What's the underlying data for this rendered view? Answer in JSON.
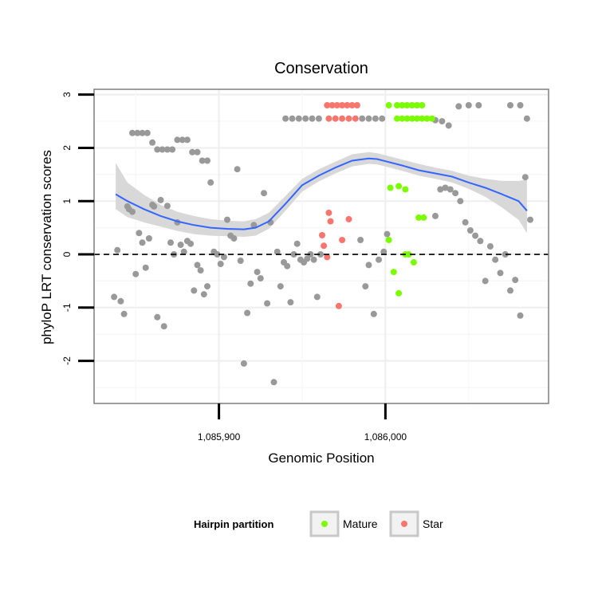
{
  "chart_data": {
    "type": "scatter",
    "title": "Conservation",
    "xlabel": "Genomic Position",
    "ylabel": "phyloP LRT conservation scores",
    "xlim": [
      1085825,
      1086098
    ],
    "ylim": [
      -2.8,
      3.1
    ],
    "x_ticks": [
      {
        "value": 1085900,
        "label": "1,085,900"
      },
      {
        "value": 1086000,
        "label": "1,086,000"
      }
    ],
    "y_ticks": [
      {
        "value": -2,
        "label": "-2"
      },
      {
        "value": -1,
        "label": "-1"
      },
      {
        "value": 0,
        "label": "0"
      },
      {
        "value": 1,
        "label": "1"
      },
      {
        "value": 2,
        "label": "2"
      },
      {
        "value": 3,
        "label": "3"
      }
    ],
    "reference_line": {
      "y": 0,
      "style": "dashed"
    },
    "smooth": {
      "color": "#3366ff",
      "band_color": "#d6d6d6",
      "x": [
        1085838,
        1085845,
        1085855,
        1085865,
        1085875,
        1085885,
        1085895,
        1085905,
        1085915,
        1085922,
        1085930,
        1085940,
        1085950,
        1085960,
        1085970,
        1085980,
        1085990,
        1085995,
        1086000,
        1086010,
        1086020,
        1086030,
        1086040,
        1086050,
        1086060,
        1086070,
        1086080,
        1086085
      ],
      "y": [
        1.13,
        1.0,
        0.85,
        0.72,
        0.62,
        0.55,
        0.5,
        0.48,
        0.47,
        0.5,
        0.62,
        0.95,
        1.3,
        1.48,
        1.63,
        1.76,
        1.8,
        1.79,
        1.75,
        1.67,
        1.58,
        1.52,
        1.46,
        1.35,
        1.25,
        1.13,
        1.0,
        0.82
      ],
      "lower": [
        0.85,
        0.7,
        0.6,
        0.52,
        0.44,
        0.38,
        0.35,
        0.34,
        0.33,
        0.35,
        0.48,
        0.82,
        1.18,
        1.37,
        1.52,
        1.65,
        1.7,
        1.69,
        1.65,
        1.57,
        1.48,
        1.42,
        1.35,
        1.23,
        1.08,
        0.88,
        0.65,
        0.4
      ],
      "upper": [
        1.72,
        1.35,
        1.12,
        0.93,
        0.8,
        0.72,
        0.66,
        0.63,
        0.62,
        0.66,
        0.78,
        1.1,
        1.42,
        1.6,
        1.74,
        1.88,
        1.92,
        1.9,
        1.86,
        1.78,
        1.7,
        1.63,
        1.57,
        1.48,
        1.42,
        1.38,
        1.38,
        1.4
      ]
    },
    "series": [
      {
        "name": "Mature",
        "color": "#7cfc00",
        "x": [
          1086002,
          1086007,
          1086010,
          1086013,
          1086016,
          1086019,
          1086022,
          1086007,
          1086010,
          1086013,
          1086016,
          1086019,
          1086022,
          1086025,
          1086028,
          1086003,
          1086008,
          1086012,
          1086002,
          1086005,
          1086008,
          1086012,
          1086014,
          1086017,
          1086020,
          1086023
        ],
        "y": [
          2.8,
          2.8,
          2.8,
          2.8,
          2.8,
          2.8,
          2.8,
          2.55,
          2.55,
          2.55,
          2.55,
          2.55,
          2.55,
          2.55,
          2.55,
          1.25,
          1.28,
          1.22,
          0.27,
          -0.33,
          -0.73,
          0.0,
          0.0,
          -0.15,
          0.69,
          0.69
        ]
      },
      {
        "name": "Star",
        "color": "#f8766d",
        "x": [
          1085965,
          1085968,
          1085971,
          1085974,
          1085977,
          1085980,
          1085983,
          1085966,
          1085970,
          1085974,
          1085978,
          1085982,
          1085962,
          1085963,
          1085965,
          1085966,
          1085967,
          1085972,
          1085974,
          1085978
        ],
        "y": [
          2.8,
          2.8,
          2.8,
          2.8,
          2.8,
          2.8,
          2.8,
          2.55,
          2.55,
          2.55,
          2.55,
          2.55,
          0.36,
          0.16,
          -0.05,
          0.78,
          0.62,
          -0.97,
          0.27,
          0.66
        ]
      },
      {
        "name": "",
        "color": "#999999",
        "x": [
          1085837,
          1085839,
          1085841,
          1085843,
          1085845,
          1085846,
          1085848,
          1085850,
          1085852,
          1085854,
          1085856,
          1085858,
          1085860,
          1085861,
          1085863,
          1085865,
          1085867,
          1085869,
          1085871,
          1085873,
          1085875,
          1085877,
          1085879,
          1085881,
          1085883,
          1085885,
          1085887,
          1085889,
          1085891,
          1085893,
          1085895,
          1085897,
          1085899,
          1085901,
          1085903,
          1085905,
          1085907,
          1085909,
          1085911,
          1085913,
          1085915,
          1085917,
          1085919,
          1085921,
          1085923,
          1085925,
          1085927,
          1085929,
          1085931,
          1085933,
          1085935,
          1085937,
          1085939,
          1085941,
          1085943,
          1085945,
          1085947,
          1085949,
          1085951,
          1085953,
          1085955,
          1085957,
          1085959,
          1085961,
          1085985,
          1085988,
          1085990,
          1085993,
          1085996,
          1085999,
          1086001,
          1086030,
          1086033,
          1086036,
          1086039,
          1086042,
          1086045,
          1086048,
          1086051,
          1086054,
          1086057,
          1086060,
          1086063,
          1086066,
          1086069,
          1086072,
          1086075,
          1086078,
          1086081,
          1086084,
          1086087,
          1085940,
          1085944,
          1085948,
          1085952,
          1085956,
          1085960,
          1085986,
          1085990,
          1085994,
          1085998,
          1086030,
          1086034,
          1086038,
          1086044,
          1086050,
          1086056,
          1086075,
          1086081,
          1086085,
          1085848,
          1085851,
          1085854,
          1085857,
          1085860,
          1085863,
          1085866,
          1085869,
          1085872,
          1085875,
          1085878,
          1085881,
          1085884,
          1085887,
          1085890,
          1085893
        ],
        "y": [
          -0.8,
          0.08,
          -0.88,
          -1.12,
          0.9,
          0.85,
          0.8,
          -0.37,
          0.4,
          0.22,
          -0.25,
          0.3,
          0.93,
          0.9,
          -1.18,
          1.02,
          -1.35,
          0.91,
          0.22,
          0.0,
          0.6,
          0.18,
          0.05,
          0.25,
          0.2,
          -0.68,
          -0.2,
          -0.3,
          -0.75,
          -0.6,
          1.35,
          0.05,
          0.0,
          -0.18,
          -0.05,
          0.65,
          0.35,
          0.3,
          1.6,
          -0.12,
          -2.05,
          -1.1,
          -0.55,
          0.55,
          -0.33,
          -0.45,
          1.15,
          -0.92,
          0.6,
          -2.4,
          0.05,
          -0.6,
          -0.15,
          -0.22,
          -0.9,
          0.0,
          0.2,
          -0.1,
          -0.15,
          -0.08,
          0.0,
          -0.1,
          -0.8,
          0.0,
          0.27,
          -0.6,
          -0.2,
          -1.12,
          -0.1,
          0.05,
          0.38,
          0.72,
          1.22,
          1.25,
          1.22,
          1.15,
          1.0,
          0.6,
          0.45,
          0.35,
          0.25,
          -0.5,
          0.15,
          -0.1,
          -0.35,
          0.0,
          -0.68,
          -0.48,
          -1.15,
          1.45,
          0.65,
          2.55,
          2.55,
          2.55,
          2.55,
          2.55,
          2.55,
          2.55,
          2.55,
          2.55,
          2.55,
          2.52,
          2.5,
          2.42,
          2.78,
          2.8,
          2.8,
          2.8,
          2.8,
          2.55,
          2.28,
          2.28,
          2.28,
          2.28,
          2.1,
          1.97,
          1.97,
          1.97,
          1.97,
          2.15,
          2.15,
          2.15,
          1.92,
          1.92,
          1.76,
          1.76
        ]
      }
    ],
    "legend": {
      "title": "Hairpin partition",
      "position": "bottom",
      "entries": [
        "Mature",
        "Star"
      ]
    }
  }
}
